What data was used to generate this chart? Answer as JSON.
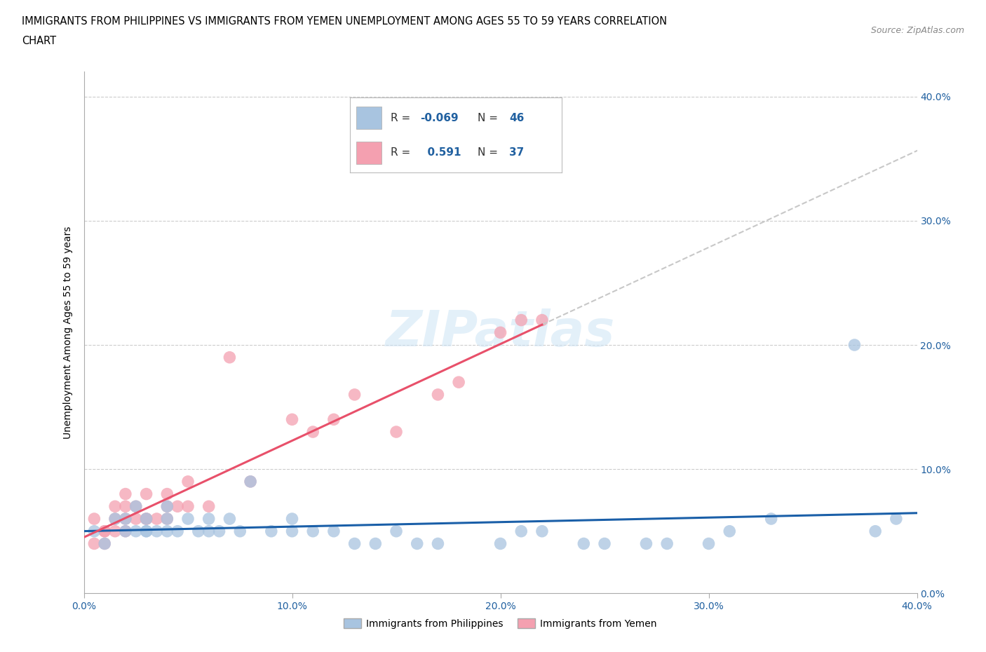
{
  "title_line1": "IMMIGRANTS FROM PHILIPPINES VS IMMIGRANTS FROM YEMEN UNEMPLOYMENT AMONG AGES 55 TO 59 YEARS CORRELATION",
  "title_line2": "CHART",
  "source": "Source: ZipAtlas.com",
  "ylabel": "Unemployment Among Ages 55 to 59 years",
  "xlabel_philippines": "Immigrants from Philippines",
  "xlabel_yemen": "Immigrants from Yemen",
  "xlim": [
    0.0,
    0.4
  ],
  "ylim": [
    0.0,
    0.42
  ],
  "xticks": [
    0.0,
    0.1,
    0.2,
    0.3,
    0.4
  ],
  "yticks": [
    0.0,
    0.1,
    0.2,
    0.3,
    0.4
  ],
  "ytick_labels_right": [
    "0.0%",
    "10.0%",
    "20.0%",
    "30.0%",
    "40.0%"
  ],
  "xtick_labels": [
    "0.0%",
    "10.0%",
    "20.0%",
    "30.0%",
    "40.0%"
  ],
  "philippines_color": "#a8c4e0",
  "yemen_color": "#f4a0b0",
  "philippines_line_color": "#1a5fa8",
  "yemen_line_color": "#e8506a",
  "watermark": "ZIPatlas",
  "legend_R_philippines": "-0.069",
  "legend_N_philippines": "46",
  "legend_R_yemen": "0.591",
  "legend_N_yemen": "37",
  "philippines_scatter_x": [
    0.005,
    0.01,
    0.015,
    0.02,
    0.02,
    0.025,
    0.025,
    0.03,
    0.03,
    0.03,
    0.035,
    0.04,
    0.04,
    0.04,
    0.045,
    0.05,
    0.055,
    0.06,
    0.06,
    0.065,
    0.07,
    0.075,
    0.08,
    0.09,
    0.1,
    0.1,
    0.11,
    0.12,
    0.13,
    0.14,
    0.15,
    0.16,
    0.17,
    0.2,
    0.21,
    0.22,
    0.24,
    0.25,
    0.27,
    0.28,
    0.3,
    0.31,
    0.33,
    0.37,
    0.38,
    0.39
  ],
  "philippines_scatter_y": [
    0.05,
    0.04,
    0.06,
    0.05,
    0.06,
    0.05,
    0.07,
    0.05,
    0.06,
    0.05,
    0.05,
    0.06,
    0.05,
    0.07,
    0.05,
    0.06,
    0.05,
    0.05,
    0.06,
    0.05,
    0.06,
    0.05,
    0.09,
    0.05,
    0.05,
    0.06,
    0.05,
    0.05,
    0.04,
    0.04,
    0.05,
    0.04,
    0.04,
    0.04,
    0.05,
    0.05,
    0.04,
    0.04,
    0.04,
    0.04,
    0.04,
    0.05,
    0.06,
    0.2,
    0.05,
    0.06
  ],
  "yemen_scatter_x": [
    0.005,
    0.005,
    0.01,
    0.01,
    0.01,
    0.015,
    0.015,
    0.015,
    0.02,
    0.02,
    0.02,
    0.02,
    0.025,
    0.025,
    0.03,
    0.03,
    0.03,
    0.035,
    0.04,
    0.04,
    0.04,
    0.045,
    0.05,
    0.05,
    0.06,
    0.07,
    0.08,
    0.1,
    0.11,
    0.12,
    0.13,
    0.15,
    0.17,
    0.18,
    0.2,
    0.21,
    0.22
  ],
  "yemen_scatter_y": [
    0.04,
    0.06,
    0.05,
    0.04,
    0.05,
    0.05,
    0.06,
    0.07,
    0.05,
    0.06,
    0.07,
    0.08,
    0.07,
    0.06,
    0.06,
    0.08,
    0.06,
    0.06,
    0.07,
    0.08,
    0.06,
    0.07,
    0.07,
    0.09,
    0.07,
    0.19,
    0.09,
    0.14,
    0.13,
    0.14,
    0.16,
    0.13,
    0.16,
    0.17,
    0.21,
    0.22,
    0.22
  ],
  "trend_extend_to": 0.4,
  "phil_trend_start_y": 0.056,
  "phil_trend_end_y": 0.048,
  "yemen_trend_start_y": 0.032,
  "yemen_trend_end_y_at_022": 0.22,
  "dashed_line_color": "#c8c8c8"
}
